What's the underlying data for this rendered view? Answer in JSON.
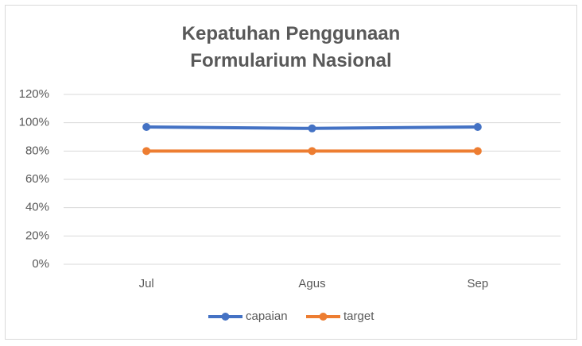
{
  "chart_data": {
    "type": "line",
    "title": "Kepatuhan Penggunaan Formularium Nasional",
    "categories": [
      "Jul",
      "Agus",
      "Sep"
    ],
    "series": [
      {
        "name": "capaian",
        "color": "#4472c4",
        "values": [
          97,
          96,
          97
        ]
      },
      {
        "name": "target",
        "color": "#ed7d31",
        "values": [
          80,
          80,
          80
        ]
      }
    ],
    "ylim": [
      0,
      120
    ],
    "yticks": [
      {
        "value": 0,
        "label": "0%"
      },
      {
        "value": 20,
        "label": "20%"
      },
      {
        "value": 40,
        "label": "40%"
      },
      {
        "value": 60,
        "label": "60%"
      },
      {
        "value": 80,
        "label": "80%"
      },
      {
        "value": 100,
        "label": "100%"
      },
      {
        "value": 120,
        "label": "120%"
      }
    ],
    "grid": true,
    "legend": "bottom"
  }
}
